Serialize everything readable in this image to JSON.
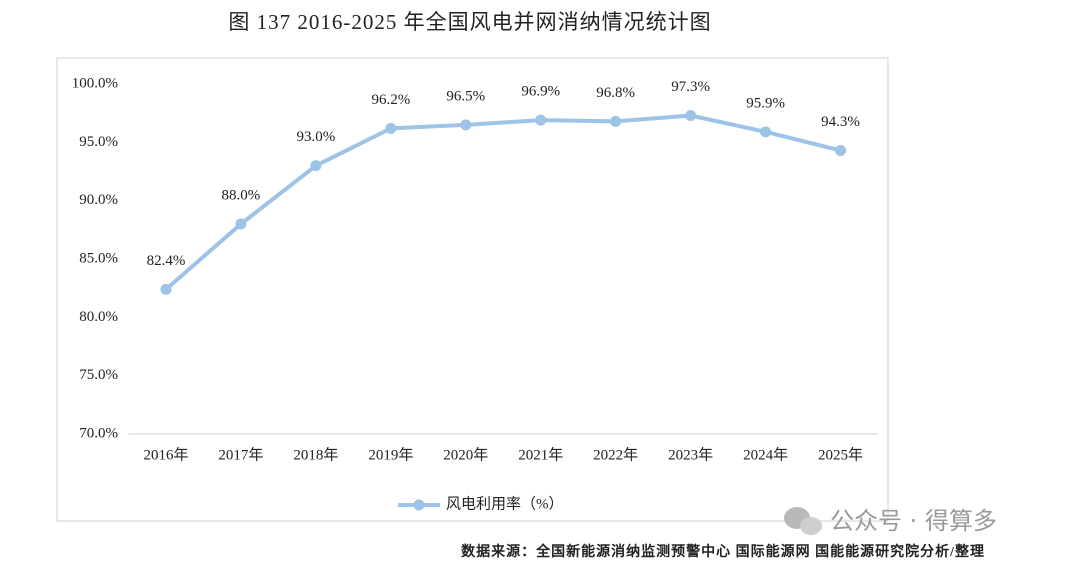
{
  "chart_data": {
    "type": "line",
    "title": "图 137 2016-2025 年全国风电并网消纳情况统计图",
    "categories": [
      "2016年",
      "2017年",
      "2018年",
      "2019年",
      "2020年",
      "2021年",
      "2022年",
      "2023年",
      "2024年",
      "2025年"
    ],
    "series": [
      {
        "name": "风电利用率（%）",
        "color": "#9dc3e6",
        "values": [
          82.4,
          88.0,
          93.0,
          96.2,
          96.5,
          96.9,
          96.8,
          97.3,
          95.9,
          94.3
        ],
        "value_labels": [
          "82.4%",
          "88.0%",
          "93.0%",
          "96.2%",
          "96.5%",
          "96.9%",
          "96.8%",
          "97.3%",
          "95.9%",
          "94.3%"
        ]
      }
    ],
    "ylim": [
      70,
      100
    ],
    "yticks": [
      {
        "value": 70,
        "label": "70.0%"
      },
      {
        "value": 75,
        "label": "75.0%"
      },
      {
        "value": 80,
        "label": "80.0%"
      },
      {
        "value": 85,
        "label": "85.0%"
      },
      {
        "value": 90,
        "label": "90.0%"
      },
      {
        "value": 95,
        "label": "95.0%"
      },
      {
        "value": 100,
        "label": "100.0%"
      }
    ],
    "grid": false,
    "legend": "bottom",
    "source": "数据来源：全国新能源消纳监测预警中心 国际能源网 国能能源研究院分析/整理",
    "watermark": "公众号 · 得算多"
  }
}
